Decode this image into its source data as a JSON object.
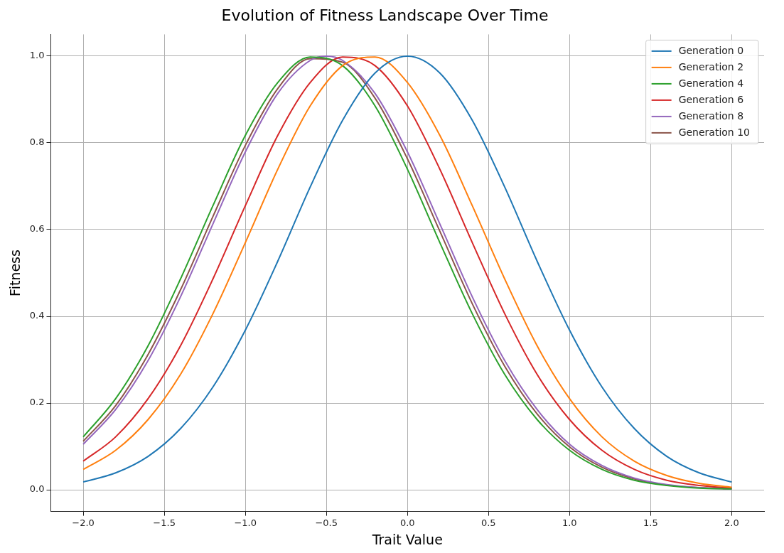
{
  "chart_data": {
    "type": "line",
    "title": "Evolution of Fitness Landscape Over Time",
    "xlabel": "Trait Value",
    "ylabel": "Fitness",
    "x": [
      -2,
      -1.8,
      -1.6,
      -1.4,
      -1.2,
      -1,
      -0.8,
      -0.6,
      -0.4,
      -0.2,
      0,
      0.2,
      0.4,
      0.6,
      0.8,
      1,
      1.2,
      1.4,
      1.6,
      1.8,
      2
    ],
    "series": [
      {
        "name": "Generation 0",
        "color": "#1f77b4",
        "values": [
          0.018,
          0.039,
          0.077,
          0.141,
          0.237,
          0.368,
          0.527,
          0.698,
          0.852,
          0.961,
          1,
          0.961,
          0.852,
          0.698,
          0.527,
          0.368,
          0.237,
          0.141,
          0.077,
          0.039,
          0.018
        ]
      },
      {
        "name": "Generation 2",
        "color": "#ff7f0e",
        "values": [
          0.047,
          0.091,
          0.162,
          0.266,
          0.406,
          0.57,
          0.739,
          0.885,
          0.978,
          0.998,
          0.939,
          0.817,
          0.655,
          0.486,
          0.332,
          0.21,
          0.122,
          0.066,
          0.033,
          0.015,
          0.006
        ]
      },
      {
        "name": "Generation 4",
        "color": "#2ca02c",
        "values": [
          0.122,
          0.21,
          0.332,
          0.486,
          0.655,
          0.817,
          0.939,
          0.998,
          0.978,
          0.885,
          0.739,
          0.57,
          0.406,
          0.266,
          0.162,
          0.091,
          0.047,
          0.022,
          0.01,
          0.004,
          0.002
        ]
      },
      {
        "name": "Generation 6",
        "color": "#d62728",
        "values": [
          0.066,
          0.122,
          0.21,
          0.332,
          0.486,
          0.655,
          0.817,
          0.939,
          0.998,
          0.978,
          0.885,
          0.739,
          0.57,
          0.406,
          0.266,
          0.162,
          0.091,
          0.047,
          0.022,
          0.01,
          0.004
        ]
      },
      {
        "name": "Generation 8",
        "color": "#9467bd",
        "x": [
          -2,
          -1.8,
          -1.6,
          -1.4,
          -1.2,
          -1,
          -0.8,
          -0.6,
          -0.5,
          -0.4,
          -0.2,
          0,
          0.2,
          0.4,
          0.6,
          0.8,
          1,
          1.2,
          1.4,
          1.6,
          1.8,
          2
        ],
        "values": [
          0.105,
          0.185,
          0.298,
          0.445,
          0.613,
          0.779,
          0.914,
          0.99,
          1,
          0.99,
          0.914,
          0.779,
          0.613,
          0.445,
          0.298,
          0.185,
          0.105,
          0.056,
          0.027,
          0.012,
          0.005,
          0.002
        ]
      },
      {
        "name": "Generation 10",
        "color": "#8c564b",
        "values": [
          0.112,
          0.194,
          0.312,
          0.461,
          0.63,
          0.794,
          0.925,
          0.994,
          0.986,
          0.903,
          0.763,
          0.596,
          0.429,
          0.285,
          0.175,
          0.099,
          0.052,
          0.025,
          0.011,
          0.005,
          0.002
        ]
      }
    ],
    "xlim": [
      -2.2,
      2.2
    ],
    "xticks": [
      {
        "value": -2,
        "label": "−2.0"
      },
      {
        "value": -1.5,
        "label": "−1.5"
      },
      {
        "value": -1,
        "label": "−1.0"
      },
      {
        "value": -0.5,
        "label": "−0.5"
      },
      {
        "value": 0,
        "label": "0.0"
      },
      {
        "value": 0.5,
        "label": "0.5"
      },
      {
        "value": 1,
        "label": "1.0"
      },
      {
        "value": 1.5,
        "label": "1.5"
      },
      {
        "value": 2,
        "label": "2.0"
      }
    ],
    "ylim": [
      -0.05,
      1.05
    ],
    "yticks": [
      {
        "value": 0,
        "label": "0.0"
      },
      {
        "value": 0.2,
        "label": "0.2"
      },
      {
        "value": 0.4,
        "label": "0.4"
      },
      {
        "value": 0.6,
        "label": "0.6"
      },
      {
        "value": 0.8,
        "label": "0.8"
      },
      {
        "value": 1,
        "label": "1.0"
      }
    ],
    "grid": true,
    "legend": "top right",
    "marker": "none",
    "line_style": "solid"
  }
}
